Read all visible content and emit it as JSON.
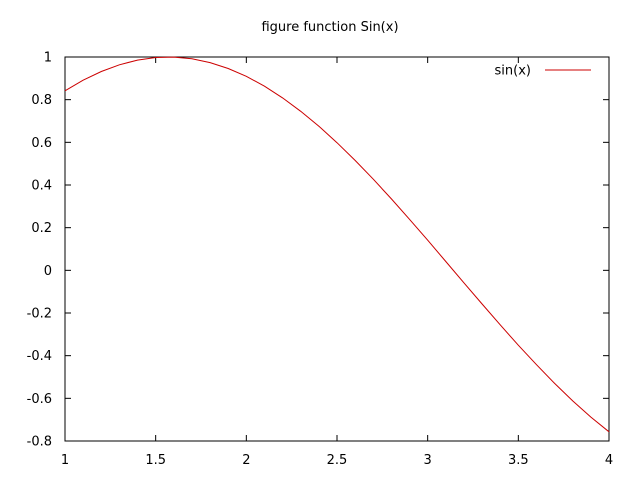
{
  "chart_data": {
    "type": "line",
    "title": "figure function Sin(x)",
    "xlabel": "",
    "ylabel": "",
    "xlim": [
      1,
      4
    ],
    "ylim": [
      -0.8,
      1
    ],
    "x_ticks": [
      1,
      1.5,
      2,
      2.5,
      3,
      3.5,
      4
    ],
    "x_tick_labels": [
      "1",
      "1.5",
      "2",
      "2.5",
      "3",
      "3.5",
      "4"
    ],
    "y_ticks": [
      -0.8,
      -0.6,
      -0.4,
      -0.2,
      0,
      0.2,
      0.4,
      0.6,
      0.8,
      1
    ],
    "y_tick_labels": [
      "-0.8",
      "-0.6",
      "-0.4",
      "-0.2",
      "0",
      "0.2",
      "0.4",
      "0.6",
      "0.8",
      "1"
    ],
    "grid": false,
    "legend_position": "top-right",
    "series": [
      {
        "name": "sin(x)",
        "color": "#cc0000",
        "x": [
          1,
          1.1,
          1.2,
          1.3,
          1.4,
          1.5,
          1.6,
          1.7,
          1.8,
          1.9,
          2,
          2.1,
          2.2,
          2.3,
          2.4,
          2.5,
          2.6,
          2.7,
          2.8,
          2.9,
          3,
          3.1,
          3.2,
          3.3,
          3.4,
          3.5,
          3.6,
          3.7,
          3.8,
          3.9,
          4
        ],
        "y": [
          0.8415,
          0.8912,
          0.932,
          0.9636,
          0.9854,
          0.9975,
          0.9996,
          0.9917,
          0.9738,
          0.9463,
          0.9093,
          0.8632,
          0.8085,
          0.7457,
          0.6755,
          0.5985,
          0.5155,
          0.4274,
          0.335,
          0.2392,
          0.1411,
          0.0416,
          -0.0584,
          -0.1577,
          -0.2555,
          -0.3508,
          -0.4425,
          -0.5298,
          -0.6119,
          -0.6878,
          -0.7568
        ]
      }
    ]
  }
}
